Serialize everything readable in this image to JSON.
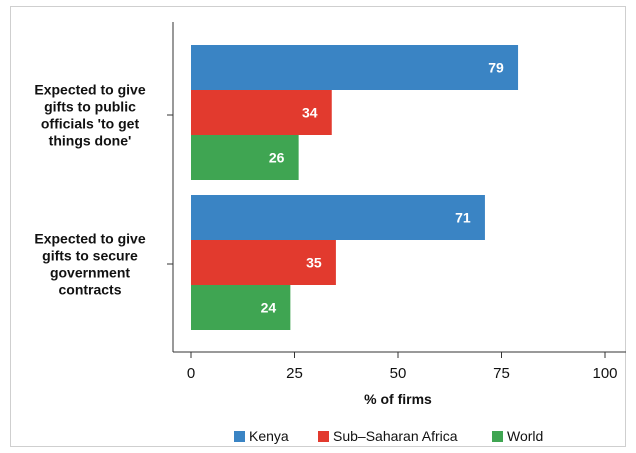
{
  "chart_data": {
    "type": "bar",
    "orientation": "horizontal",
    "categories": [
      [
        "Expected to  give",
        "gifts to public",
        "officials 'to get",
        "things done'"
      ],
      [
        "Expected to give",
        "gifts to secure",
        "government",
        "contracts"
      ]
    ],
    "series": [
      {
        "name": "Kenya",
        "color": "#3a84c4",
        "values": [
          79,
          71
        ]
      },
      {
        "name": "Sub–Saharan Africa",
        "color": "#e23a2e",
        "values": [
          34,
          35
        ]
      },
      {
        "name": "World",
        "color": "#3fa552",
        "values": [
          26,
          24
        ]
      }
    ],
    "xlabel": "% of firms",
    "xlim": [
      0,
      100
    ],
    "xticks": [
      0,
      25,
      50,
      75,
      100
    ],
    "grid": false,
    "legend": "bottom"
  }
}
